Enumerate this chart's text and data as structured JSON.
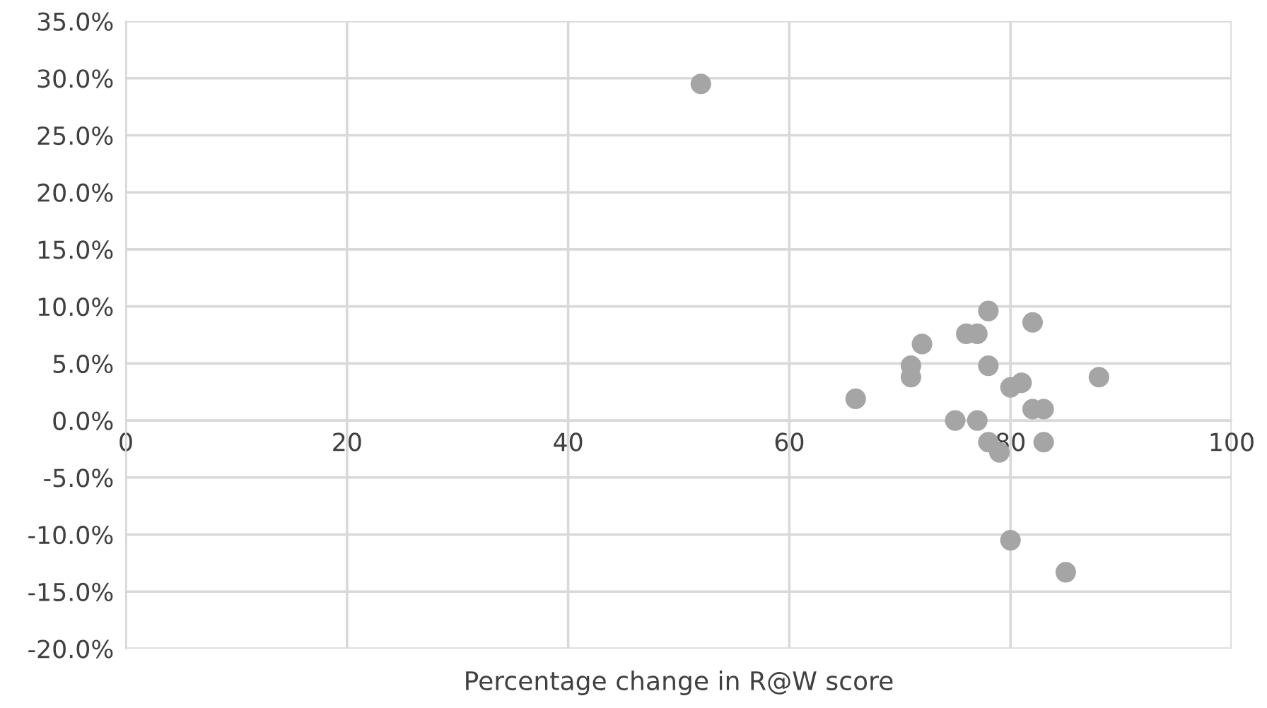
{
  "chart_data": {
    "type": "scatter",
    "xlabel": "Percentage change in R@W score",
    "x": [
      52,
      66,
      71,
      71,
      72,
      75,
      76,
      77,
      77,
      78,
      78,
      78,
      79,
      80,
      81,
      82,
      82,
      83,
      83,
      88,
      80,
      85
    ],
    "values": [
      29.5,
      1.9,
      4.8,
      3.8,
      6.7,
      0,
      7.6,
      7.6,
      0,
      9.6,
      4.8,
      -1.9,
      -2.8,
      2.9,
      3.3,
      8.6,
      1.0,
      1.0,
      -1.9,
      3.8,
      -10.5,
      -13.3
    ],
    "color": "#a5a5a5",
    "marker": "circle",
    "grid": true,
    "xlim": [
      0,
      100
    ],
    "xticks": [
      0,
      20,
      40,
      60,
      80,
      100
    ],
    "ylim": [
      -20,
      35
    ],
    "yticks": [
      {
        "value": -20,
        "label": "-20.0%"
      },
      {
        "value": -15,
        "label": "-15.0%"
      },
      {
        "value": -10,
        "label": "-10.0%"
      },
      {
        "value": -5,
        "label": "-5.0%"
      },
      {
        "value": 0,
        "label": "0.0%"
      },
      {
        "value": 5,
        "label": "5.0%"
      },
      {
        "value": 10,
        "label": "10.0%"
      },
      {
        "value": 15,
        "label": "15.0%"
      },
      {
        "value": 20,
        "label": "20.0%"
      },
      {
        "value": 25,
        "label": "25.0%"
      },
      {
        "value": 30,
        "label": "30.0%"
      },
      {
        "value": 35,
        "label": "35.0%"
      }
    ]
  }
}
